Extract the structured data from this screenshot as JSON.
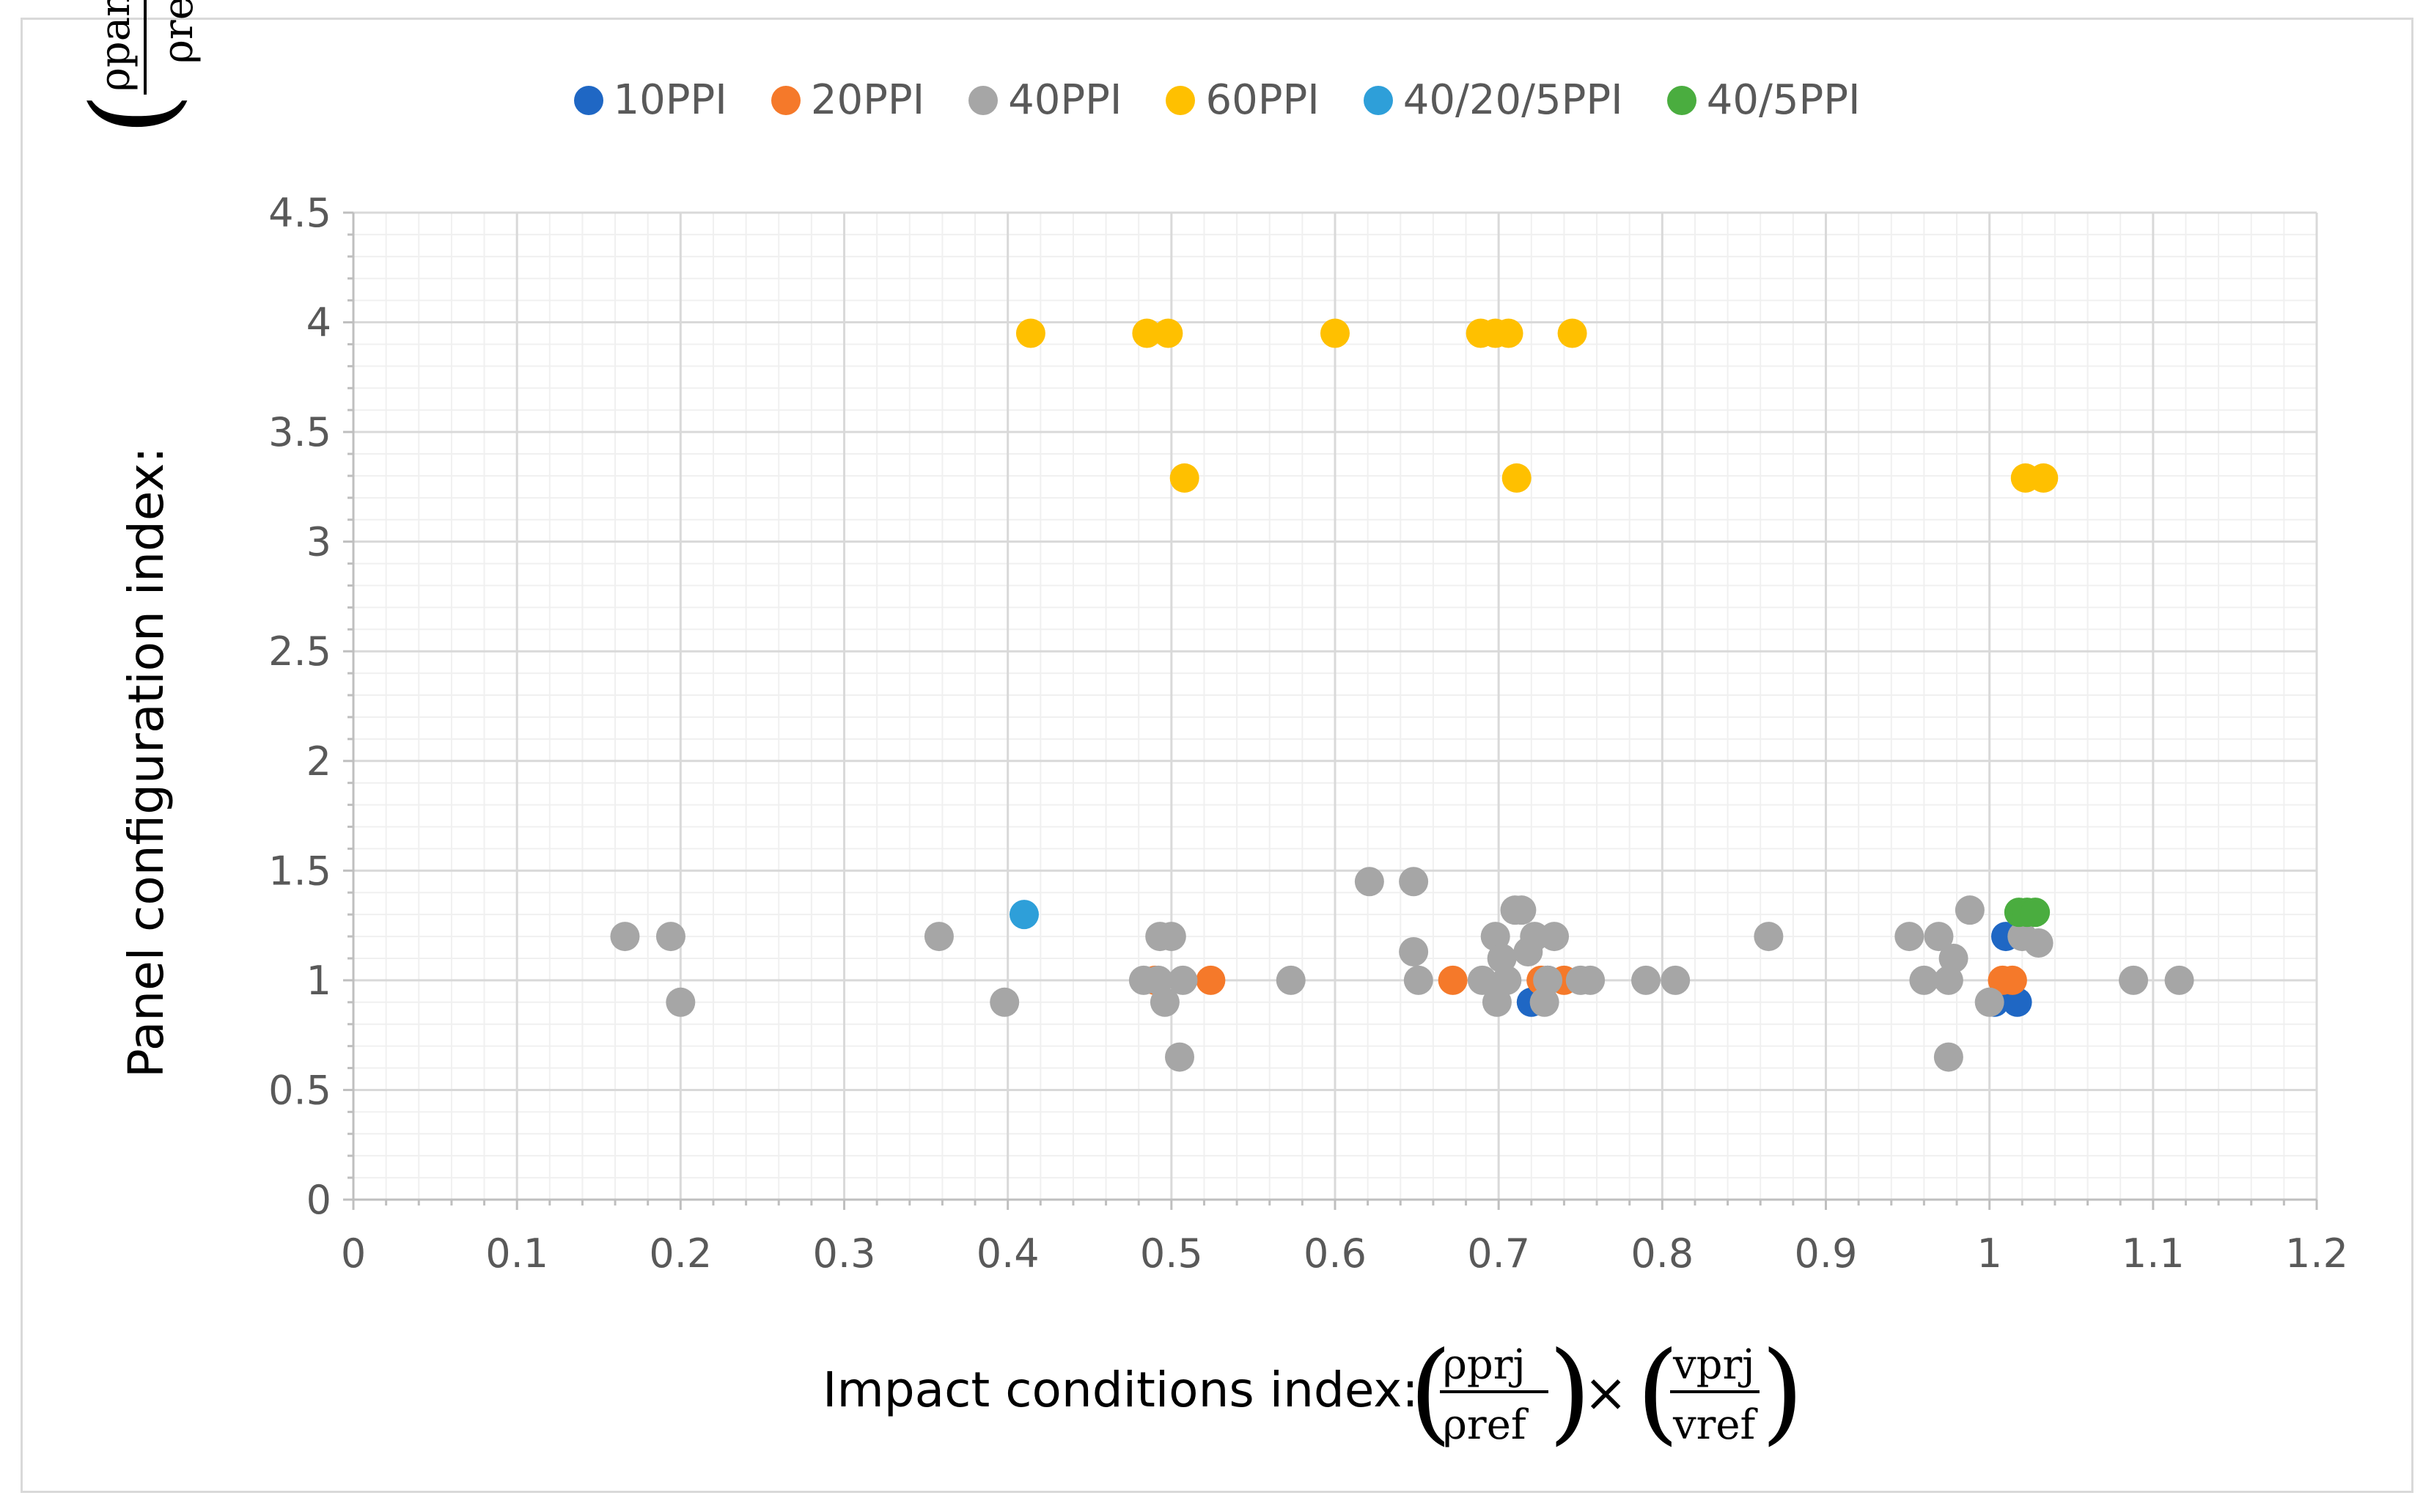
{
  "chart_data": {
    "type": "scatter",
    "title": "",
    "xlabel_prefix": "Impact conditions index: ",
    "ylabel_prefix": "Panel configuration index: ",
    "xlabel_math": {
      "num1": "ρprj",
      "den1": "ρref",
      "times": "×",
      "num2": "vprj",
      "den2": "vref"
    },
    "ylabel_math": {
      "num": "ρpanel",
      "den": "ρref"
    },
    "xlim": [
      0,
      1.2
    ],
    "ylim": [
      0,
      4.5
    ],
    "x_ticks": [
      "0",
      "0.1",
      "0.2",
      "0.3",
      "0.4",
      "0.5",
      "0.6",
      "0.7",
      "0.8",
      "0.9",
      "1",
      "1.1",
      "1.2"
    ],
    "y_ticks": [
      "0",
      "0.5",
      "1",
      "1.5",
      "2",
      "2.5",
      "3",
      "3.5",
      "4",
      "4.5"
    ],
    "legend_position": "top",
    "series": [
      {
        "name": "10PPI",
        "color": "#1f67c4",
        "points": [
          [
            1.003,
            0.9
          ],
          [
            1.017,
            0.9
          ],
          [
            1.01,
            1.2
          ],
          [
            0.72,
            0.9
          ],
          [
            0.73,
            1.0
          ]
        ]
      },
      {
        "name": "20PPI",
        "color": "#f5792a",
        "points": [
          [
            0.524,
            1.0
          ],
          [
            0.672,
            1.0
          ],
          [
            0.726,
            1.0
          ],
          [
            0.74,
            1.0
          ],
          [
            1.008,
            1.0
          ],
          [
            1.014,
            1.0
          ],
          [
            0.49,
            1.0
          ]
        ]
      },
      {
        "name": "40PPI",
        "color": "#a6a6a6",
        "points": [
          [
            0.166,
            1.2
          ],
          [
            0.194,
            1.2
          ],
          [
            0.2,
            0.9
          ],
          [
            0.358,
            1.2
          ],
          [
            0.398,
            0.9
          ],
          [
            0.483,
            1.0
          ],
          [
            0.492,
            1.0
          ],
          [
            0.493,
            1.2
          ],
          [
            0.5,
            1.2
          ],
          [
            0.496,
            0.9
          ],
          [
            0.507,
            1.0
          ],
          [
            0.505,
            0.65
          ],
          [
            0.573,
            1.0
          ],
          [
            0.621,
            1.45
          ],
          [
            0.648,
            1.45
          ],
          [
            0.648,
            1.13
          ],
          [
            0.651,
            1.0
          ],
          [
            0.69,
            1.0
          ],
          [
            0.698,
            1.2
          ],
          [
            0.699,
            0.9
          ],
          [
            0.702,
            1.1
          ],
          [
            0.705,
            1.0
          ],
          [
            0.71,
            1.32
          ],
          [
            0.714,
            1.32
          ],
          [
            0.718,
            1.13
          ],
          [
            0.722,
            1.2
          ],
          [
            0.734,
            1.2
          ],
          [
            0.728,
            0.9
          ],
          [
            0.73,
            1.0
          ],
          [
            0.75,
            1.0
          ],
          [
            0.756,
            1.0
          ],
          [
            0.79,
            1.0
          ],
          [
            0.808,
            1.0
          ],
          [
            0.865,
            1.2
          ],
          [
            0.951,
            1.2
          ],
          [
            0.96,
            1.0
          ],
          [
            0.969,
            1.2
          ],
          [
            0.975,
            1.0
          ],
          [
            0.978,
            1.1
          ],
          [
            0.975,
            0.65
          ],
          [
            0.988,
            1.32
          ],
          [
            1.0,
            0.9
          ],
          [
            1.02,
            1.2
          ],
          [
            1.03,
            1.17
          ],
          [
            1.088,
            1.0
          ],
          [
            1.116,
            1.0
          ]
        ]
      },
      {
        "name": "60PPI",
        "color": "#ffc000",
        "points": [
          [
            0.414,
            3.95
          ],
          [
            0.485,
            3.95
          ],
          [
            0.498,
            3.95
          ],
          [
            0.6,
            3.95
          ],
          [
            0.689,
            3.95
          ],
          [
            0.698,
            3.95
          ],
          [
            0.706,
            3.95
          ],
          [
            0.745,
            3.95
          ],
          [
            0.508,
            3.29
          ],
          [
            0.711,
            3.29
          ],
          [
            1.022,
            3.29
          ],
          [
            1.033,
            3.29
          ]
        ]
      },
      {
        "name": "40/20/5PPI",
        "color": "#2e9fd9",
        "points": [
          [
            0.41,
            1.3
          ]
        ]
      },
      {
        "name": "40/5PPI",
        "color": "#4aad3f",
        "points": [
          [
            1.018,
            1.31
          ],
          [
            1.023,
            1.31
          ],
          [
            1.028,
            1.31
          ]
        ]
      }
    ]
  }
}
